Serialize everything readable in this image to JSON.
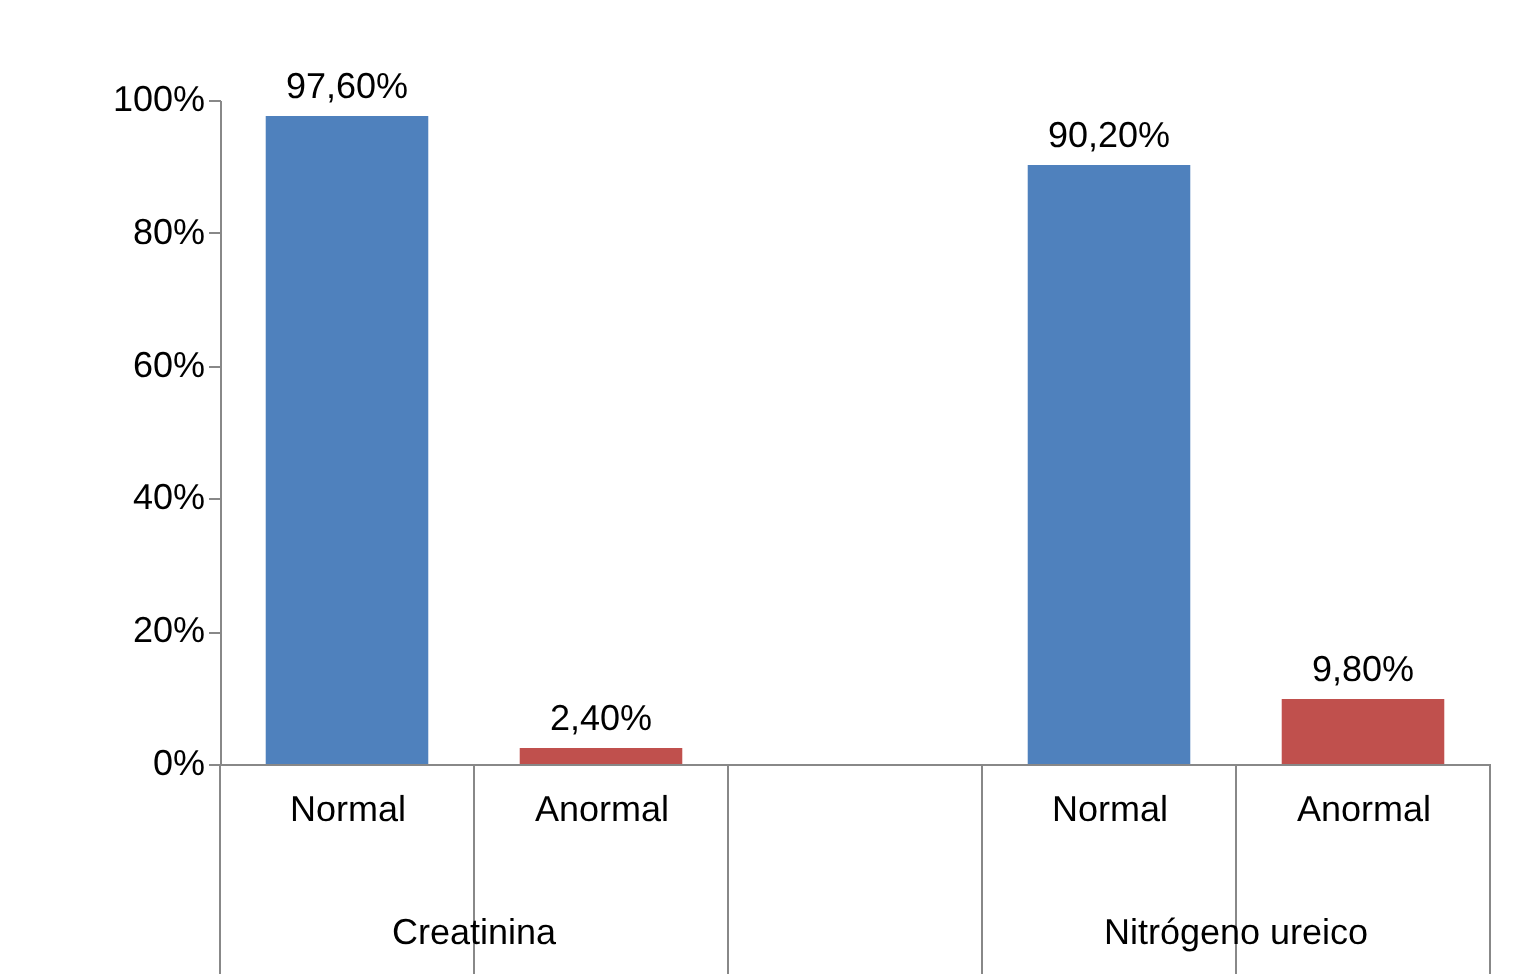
{
  "chart_data": {
    "type": "bar",
    "categories": [
      "Normal",
      "Anormal",
      "Normal",
      "Anormal"
    ],
    "values": [
      97.6,
      2.4,
      90.2,
      9.8
    ],
    "colors": [
      "#4f81bd",
      "#c0504d",
      "#4f81bd",
      "#c0504d"
    ],
    "value_labels": [
      "97,60%",
      "2,40%",
      "90,20%",
      "9,80%"
    ],
    "annotations": [
      "Creatinina",
      "Nitrógeno ureico"
    ],
    "ylim": [
      0,
      100
    ],
    "yticks": [
      {
        "value": 0,
        "label": "0%"
      },
      {
        "value": 20,
        "label": "20%"
      },
      {
        "value": 40,
        "label": "40%"
      },
      {
        "value": 60,
        "label": "60%"
      },
      {
        "value": 80,
        "label": "80%"
      },
      {
        "value": 100,
        "label": "100%"
      }
    ],
    "grid": false,
    "legend": false
  }
}
